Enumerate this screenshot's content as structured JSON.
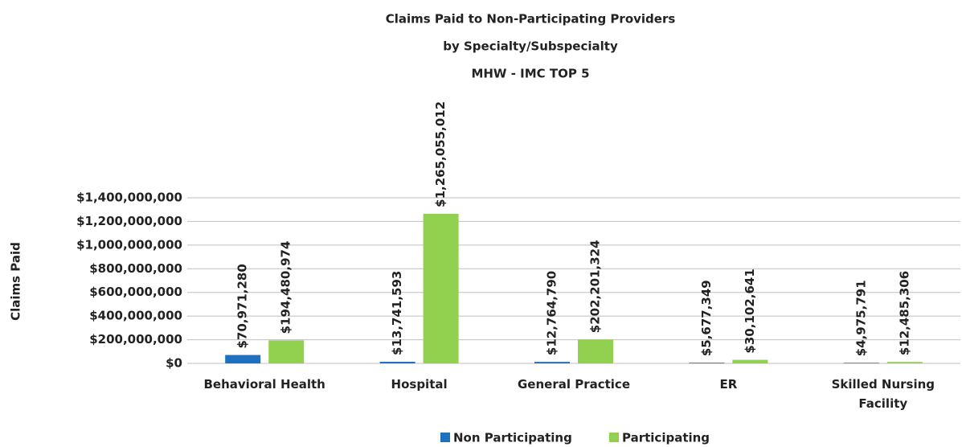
{
  "chart_data": {
    "type": "bar",
    "title": "Claims Paid to Non-Participating Providers",
    "subtitle": [
      "by Specialty/Subspecialty",
      "MHW - IMC TOP 5"
    ],
    "y_label": "Claims Paid",
    "categories": [
      "Behavioral Health",
      "Hospital",
      "General Practice",
      "ER",
      "Skilled Nursing Facility"
    ],
    "series": [
      {
        "name": "Non Participating",
        "color": "#1f70c1",
        "values": [
          70971280,
          13741593,
          12764790,
          5677349,
          4975791
        ],
        "value_labels": [
          "$70,971,280",
          "$13,741,593",
          "$12,764,790",
          "$5,677,349",
          "$4,975,791"
        ]
      },
      {
        "name": "Participating",
        "color": "#92d050",
        "values": [
          194480974,
          1265055012,
          202201324,
          30102641,
          12485306
        ],
        "value_labels": [
          "$194,480,974",
          "$1,265,055,012",
          "$202,201,324",
          "$30,102,641",
          "$12,485,306"
        ]
      }
    ],
    "ylim": [
      0,
      1400000000
    ],
    "yticks": [
      {
        "value": 0,
        "label": "$0"
      },
      {
        "value": 200000000,
        "label": "$200,000,000"
      },
      {
        "value": 400000000,
        "label": "$400,000,000"
      },
      {
        "value": 600000000,
        "label": "$600,000,000"
      },
      {
        "value": 800000000,
        "label": "$800,000,000"
      },
      {
        "value": 1000000000,
        "label": "$1,000,000,000"
      },
      {
        "value": 1200000000,
        "label": "$1,200,000,000"
      },
      {
        "value": 1400000000,
        "label": "$1,400,000,000"
      }
    ],
    "grid": true,
    "legend": "bottom"
  }
}
